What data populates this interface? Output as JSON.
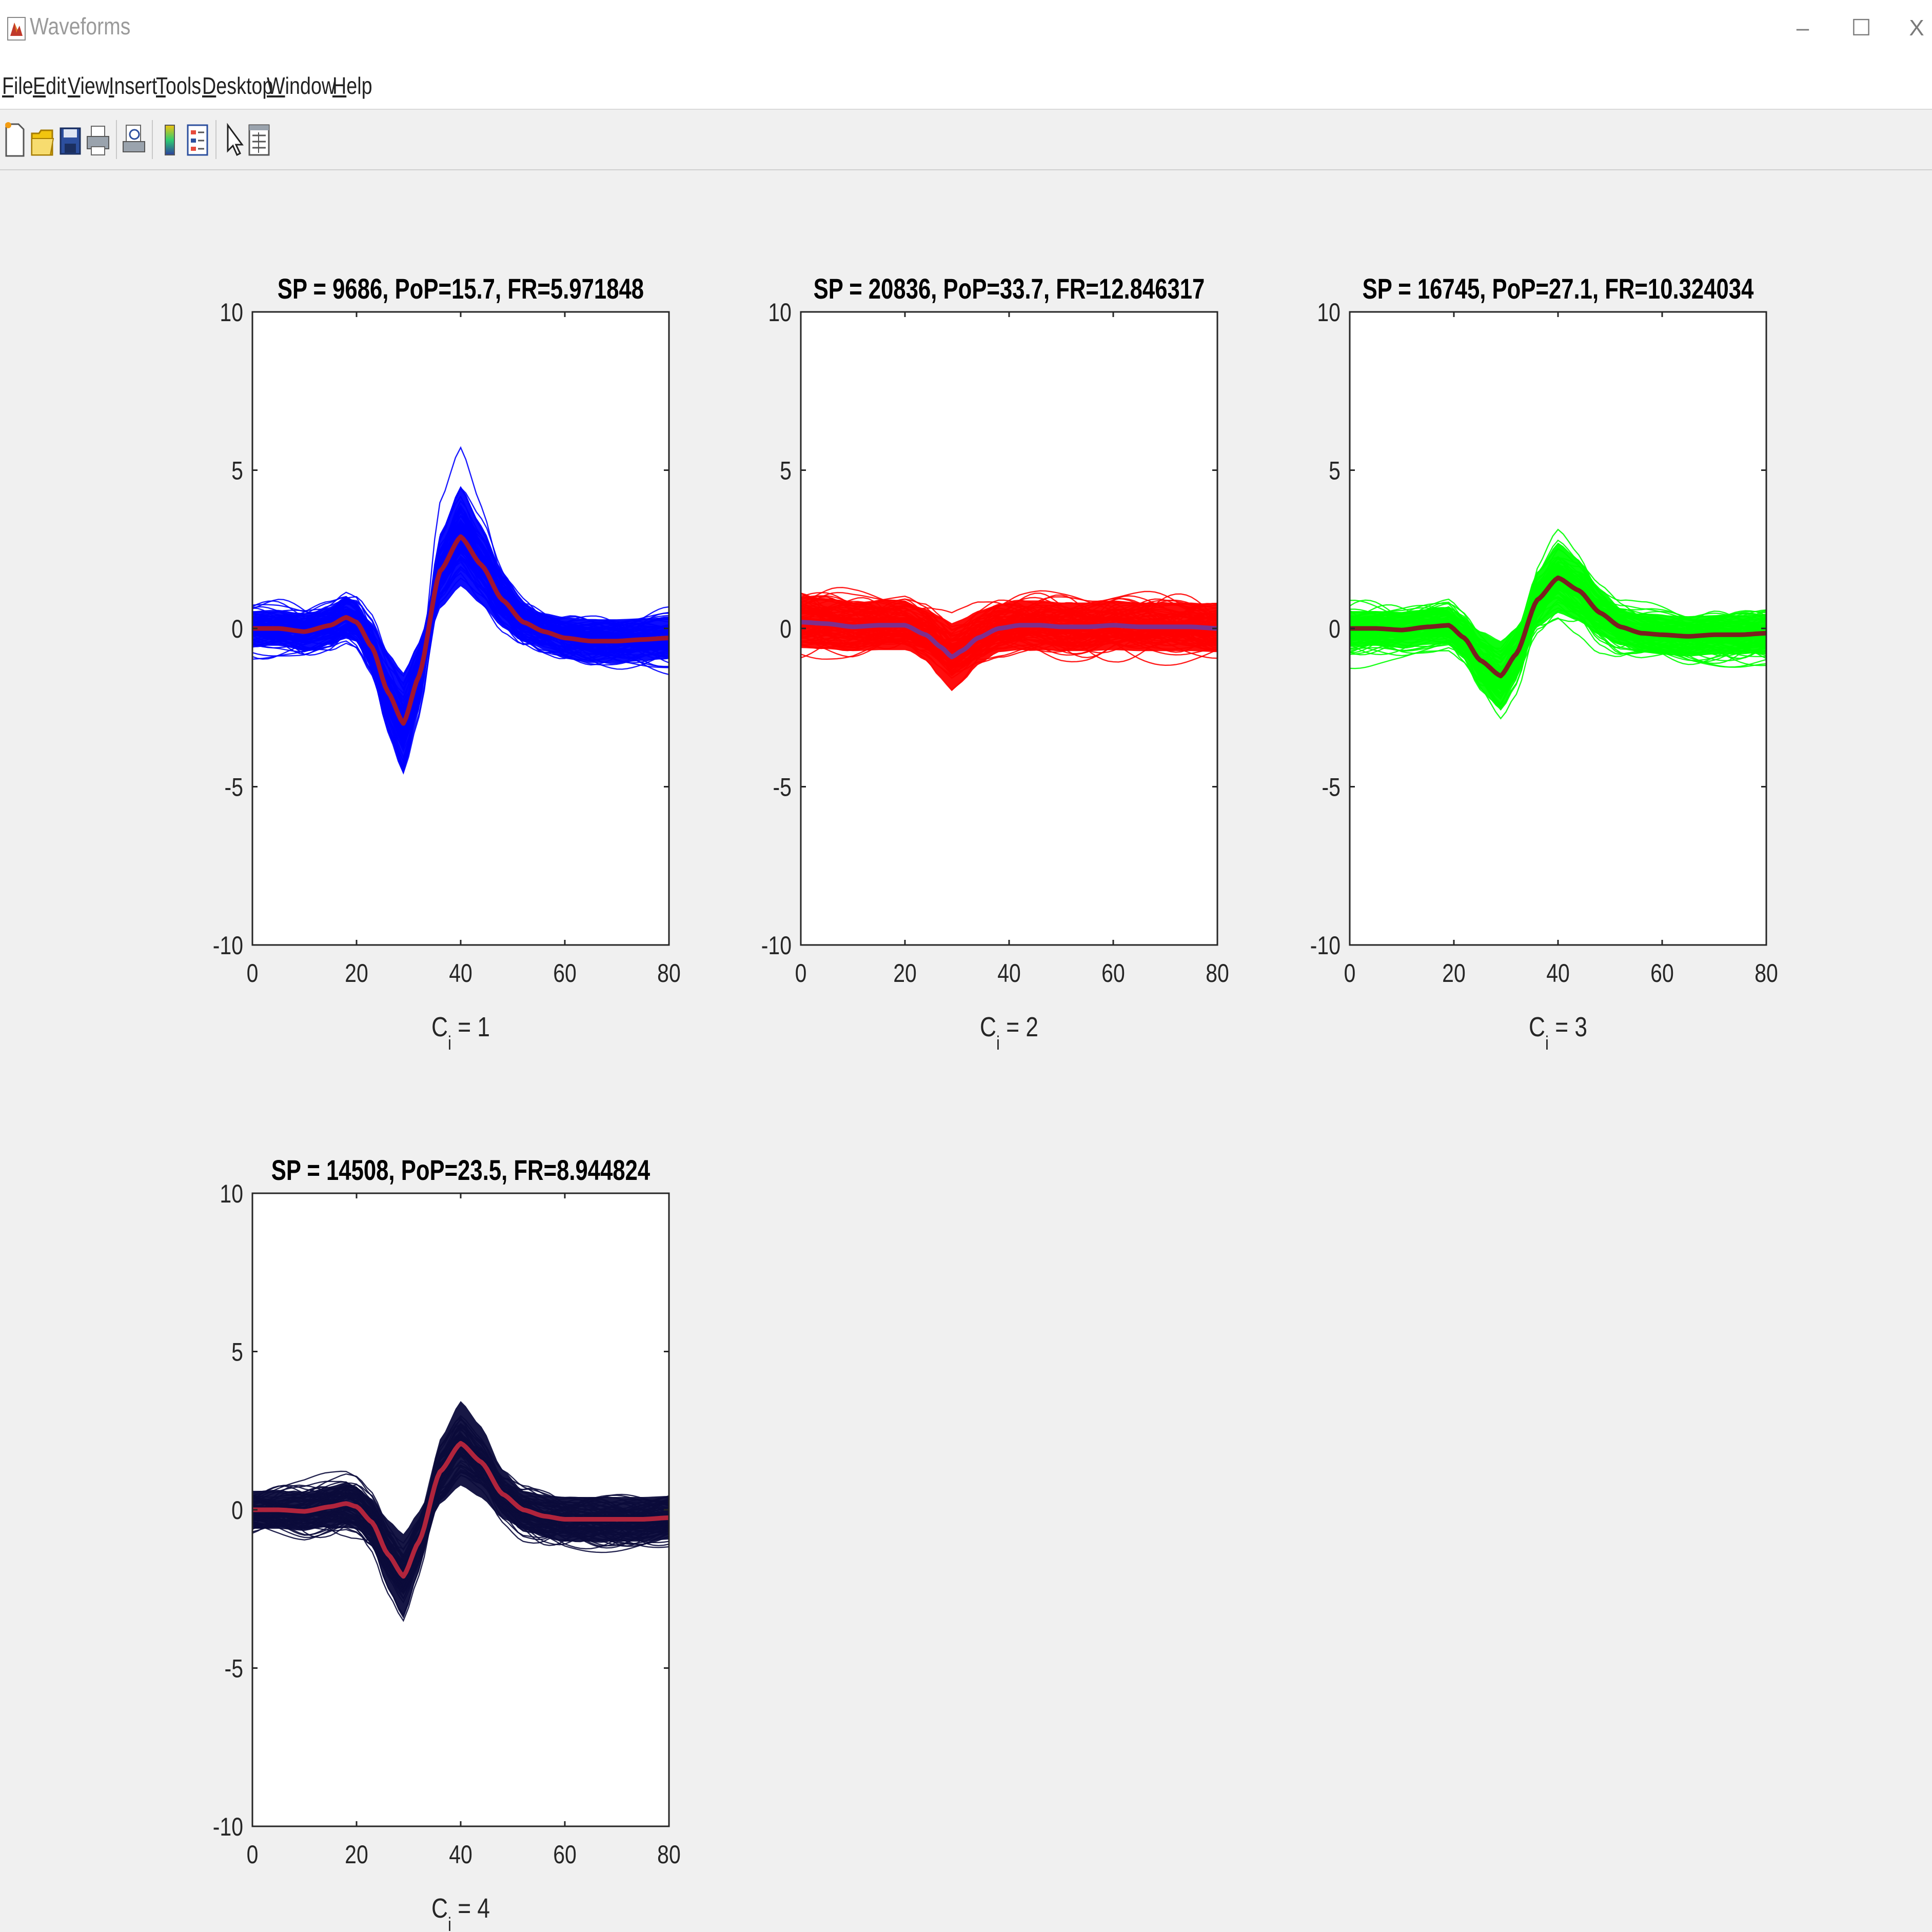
{
  "window": {
    "title": "Waveforms",
    "controls": {
      "minimize": "–",
      "maximize": "☐",
      "close": "X"
    }
  },
  "menu": [
    {
      "mnemonic": "F",
      "rest": "ile"
    },
    {
      "mnemonic": "E",
      "rest": "dit"
    },
    {
      "mnemonic": "V",
      "rest": "iew"
    },
    {
      "mnemonic": "I",
      "rest": "nsert"
    },
    {
      "mnemonic": "T",
      "rest": "ools"
    },
    {
      "mnemonic": "D",
      "rest": "esktop"
    },
    {
      "mnemonic": "W",
      "rest": "indow"
    },
    {
      "mnemonic": "H",
      "rest": "elp"
    }
  ],
  "toolbar": [
    "new-figure-icon",
    "open-file-icon",
    "save-icon",
    "print-icon",
    "print-preview-icon",
    "colorbar-icon",
    "legend-icon",
    "edit-plot-arrow-icon",
    "property-inspector-icon"
  ],
  "chart_data": [
    {
      "type": "line",
      "title": "SP = 9686, PoP=15.7, FR=5.971848",
      "xlabel": "C",
      "xlabel_sub": "i",
      "xlabel_suffix": " = 1",
      "xlim": [
        0,
        80
      ],
      "ylim": [
        -10,
        10
      ],
      "xticks": [
        0,
        20,
        40,
        60,
        80
      ],
      "yticks": [
        -10,
        -5,
        0,
        5,
        10
      ],
      "trace_color": "#0000ff",
      "mean_color": "#a2142f",
      "band_spread": [
        0.55,
        0.85
      ],
      "mean": {
        "x": [
          0,
          5,
          10,
          15,
          18,
          20,
          23,
          26,
          29,
          32,
          36,
          40,
          44,
          48,
          52,
          56,
          60,
          65,
          70,
          75,
          80
        ],
        "y": [
          0,
          0,
          -0.1,
          0.1,
          0.35,
          0.2,
          -0.6,
          -2.0,
          -3.0,
          -1.5,
          1.8,
          2.9,
          2.0,
          0.9,
          0.2,
          -0.1,
          -0.3,
          -0.4,
          -0.4,
          -0.35,
          -0.3
        ]
      }
    },
    {
      "type": "line",
      "title": "SP = 20836, PoP=33.7, FR=12.846317",
      "xlabel": "C",
      "xlabel_sub": "i",
      "xlabel_suffix": " = 2",
      "xlim": [
        0,
        80
      ],
      "ylim": [
        -10,
        10
      ],
      "xticks": [
        0,
        20,
        40,
        60,
        80
      ],
      "yticks": [
        -10,
        -5,
        0,
        5,
        10
      ],
      "trace_color": "#ff0000",
      "mean_color": "#7e2f8e",
      "band_spread": [
        0.75,
        1.0
      ],
      "mean": {
        "x": [
          0,
          5,
          10,
          15,
          20,
          24,
          27,
          29,
          31,
          34,
          38,
          42,
          46,
          50,
          55,
          60,
          65,
          70,
          75,
          80
        ],
        "y": [
          0.2,
          0.15,
          0.05,
          0.1,
          0.1,
          -0.2,
          -0.6,
          -0.9,
          -0.7,
          -0.3,
          0.0,
          0.1,
          0.1,
          0.05,
          0.05,
          0.1,
          0.05,
          0.05,
          0.05,
          0.0
        ]
      }
    },
    {
      "type": "line",
      "title": "SP = 16745, PoP=27.1, FR=10.324034",
      "xlabel": "C",
      "xlabel_sub": "i",
      "xlabel_suffix": " = 3",
      "xlim": [
        0,
        80
      ],
      "ylim": [
        -10,
        10
      ],
      "xticks": [
        0,
        20,
        40,
        60,
        80
      ],
      "yticks": [
        -10,
        -5,
        0,
        5,
        10
      ],
      "trace_color": "#00ff00",
      "mean_color": "#7a2020",
      "band_spread": [
        0.55,
        0.8
      ],
      "mean": {
        "x": [
          0,
          5,
          10,
          15,
          19,
          22,
          25,
          29,
          32,
          36,
          40,
          44,
          48,
          52,
          56,
          60,
          65,
          70,
          75,
          80
        ],
        "y": [
          0,
          0,
          -0.05,
          0.05,
          0.1,
          -0.3,
          -1.0,
          -1.5,
          -0.8,
          0.9,
          1.6,
          1.2,
          0.5,
          0.05,
          -0.15,
          -0.2,
          -0.25,
          -0.2,
          -0.2,
          -0.15
        ]
      }
    },
    {
      "type": "line",
      "title": "SP = 14508, PoP=23.5, FR=8.944824",
      "xlabel": "C",
      "xlabel_sub": "i",
      "xlabel_suffix": " = 4",
      "xlim": [
        0,
        80
      ],
      "ylim": [
        -10,
        10
      ],
      "xticks": [
        0,
        20,
        40,
        60,
        80
      ],
      "yticks": [
        -10,
        -5,
        0,
        5,
        10
      ],
      "trace_color": "#0b0b3b",
      "mean_color": "#b0243c",
      "band_spread": [
        0.6,
        0.9
      ],
      "mean": {
        "x": [
          0,
          5,
          10,
          15,
          18,
          20,
          23,
          26,
          29,
          32,
          36,
          40,
          44,
          48,
          52,
          56,
          60,
          65,
          70,
          75,
          80
        ],
        "y": [
          0,
          0,
          -0.05,
          0.1,
          0.2,
          0.1,
          -0.4,
          -1.4,
          -2.1,
          -1.0,
          1.2,
          2.1,
          1.5,
          0.5,
          0.0,
          -0.2,
          -0.3,
          -0.3,
          -0.3,
          -0.3,
          -0.25
        ]
      }
    }
  ]
}
